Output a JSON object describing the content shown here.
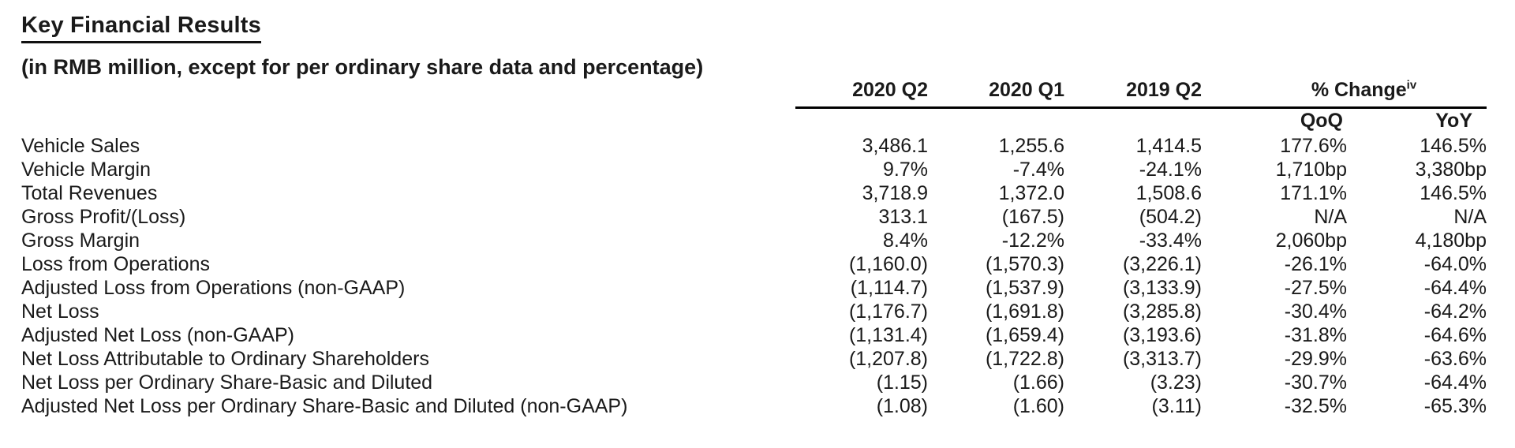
{
  "page": {
    "title": "Key Financial Results",
    "subtitle": "(in RMB million, except for per ordinary share data and percentage)",
    "colors": {
      "background": "#ffffff",
      "text": "#1a1a1a",
      "rule": "#000000"
    }
  },
  "table": {
    "period_headers": [
      "2020 Q2",
      "2020 Q1",
      "2019 Q2"
    ],
    "change_header": {
      "label": "% Change",
      "superscript": "iv"
    },
    "change_subheaders": {
      "qoq": "QoQ",
      "yoy": "YoY"
    },
    "rows": [
      {
        "label": "Vehicle Sales",
        "values": [
          "3,486.1",
          "1,255.6",
          "1,414.5",
          "177.6%",
          "146.5%"
        ]
      },
      {
        "label": "Vehicle Margin",
        "values": [
          "9.7%",
          "-7.4%",
          "-24.1%",
          "1,710bp",
          "3,380bp"
        ]
      },
      {
        "label": "Total Revenues",
        "values": [
          "3,718.9",
          "1,372.0",
          "1,508.6",
          "171.1%",
          "146.5%"
        ]
      },
      {
        "label": "Gross Profit/(Loss)",
        "values": [
          "313.1",
          "(167.5)",
          "(504.2)",
          "N/A",
          "N/A"
        ]
      },
      {
        "label": "Gross Margin",
        "values": [
          "8.4%",
          "-12.2%",
          "-33.4%",
          "2,060bp",
          "4,180bp"
        ]
      },
      {
        "label": "Loss from Operations",
        "values": [
          "(1,160.0)",
          "(1,570.3)",
          "(3,226.1)",
          "-26.1%",
          "-64.0%"
        ]
      },
      {
        "label": "Adjusted Loss from Operations (non-GAAP)",
        "values": [
          "(1,114.7)",
          "(1,537.9)",
          "(3,133.9)",
          "-27.5%",
          "-64.4%"
        ]
      },
      {
        "label": "Net Loss",
        "values": [
          "(1,176.7)",
          "(1,691.8)",
          "(3,285.8)",
          "-30.4%",
          "-64.2%"
        ]
      },
      {
        "label": "Adjusted Net Loss (non-GAAP)",
        "values": [
          "(1,131.4)",
          "(1,659.4)",
          "(3,193.6)",
          "-31.8%",
          "-64.6%"
        ]
      },
      {
        "label": "Net Loss Attributable to Ordinary Shareholders",
        "values": [
          "(1,207.8)",
          "(1,722.8)",
          "(3,313.7)",
          "-29.9%",
          "-63.6%"
        ]
      },
      {
        "label": "Net Loss per Ordinary Share-Basic and Diluted",
        "values": [
          "(1.15)",
          "(1.66)",
          "(3.23)",
          "-30.7%",
          "-64.4%"
        ]
      },
      {
        "label": "Adjusted Net Loss per Ordinary Share-Basic and Diluted (non-GAAP)",
        "values": [
          "(1.08)",
          "(1.60)",
          "(3.11)",
          "-32.5%",
          "-65.3%"
        ]
      }
    ]
  }
}
